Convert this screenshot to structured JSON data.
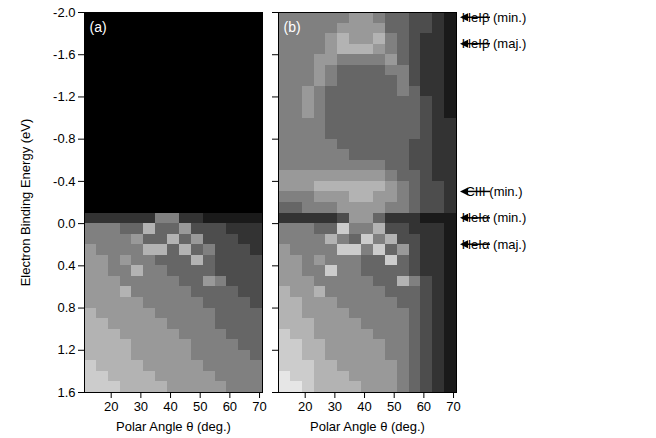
{
  "chart_data": [
    {
      "type": "heatmap",
      "title": "(a)",
      "x_label": "Polar Angle θ (deg.)",
      "y_label": "Electron Binding Energy (eV)",
      "xlim": [
        11,
        71
      ],
      "ylim": [
        -2,
        1.6
      ],
      "xticks": [
        20,
        30,
        40,
        50,
        60,
        70
      ],
      "yticks": [
        {
          "value": -2,
          "label": "-2.0"
        },
        -1.6,
        -1.2,
        -0.8,
        -0.4,
        {
          "value": 0,
          "label": "0.0"
        },
        0.4,
        0.8,
        1.2,
        1.6
      ],
      "color": "gray",
      "zlim": [
        0,
        10
      ],
      "x_edges": [
        11,
        15,
        19,
        23,
        27,
        31,
        35,
        39,
        43,
        47,
        51,
        55,
        59,
        63,
        67,
        71
      ],
      "y_edges": [
        -2,
        -1.9,
        -1.8,
        -1.7,
        -1.6,
        -1.5,
        -1.4,
        -1.3,
        -1.2,
        -1.1,
        -1,
        -0.9,
        -0.8,
        -0.7,
        -0.6,
        -0.5,
        -0.4,
        -0.3,
        -0.2,
        -0.1,
        0,
        0.1,
        0.2,
        0.3,
        0.4,
        0.5,
        0.6,
        0.7,
        0.8,
        0.9,
        1,
        1.1,
        1.2,
        1.3,
        1.4,
        1.5,
        1.6
      ],
      "intensity": [
        [
          0,
          0,
          0,
          0,
          0,
          0,
          0,
          0,
          0,
          0,
          0,
          0,
          0,
          0,
          0
        ],
        [
          0,
          0,
          0,
          0,
          0,
          0,
          0,
          0,
          0,
          0,
          0,
          0,
          0,
          0,
          0
        ],
        [
          0,
          0,
          0,
          0,
          0,
          0,
          0,
          0,
          0,
          0,
          0,
          0,
          0,
          0,
          0
        ],
        [
          0,
          0,
          0,
          0,
          0,
          0,
          0,
          0,
          0,
          0,
          0,
          0,
          0,
          0,
          0
        ],
        [
          0,
          0,
          0,
          0,
          0,
          0,
          0,
          0,
          0,
          0,
          0,
          0,
          0,
          0,
          0
        ],
        [
          0,
          0,
          0,
          0,
          0,
          0,
          0,
          0,
          0,
          0,
          0,
          0,
          0,
          0,
          0
        ],
        [
          0,
          0,
          0,
          0,
          0,
          0,
          0,
          0,
          0,
          0,
          0,
          0,
          0,
          0,
          0
        ],
        [
          0,
          0,
          0,
          0,
          0,
          0,
          0,
          0,
          0,
          0,
          0,
          0,
          0,
          0,
          0
        ],
        [
          0,
          0,
          0,
          0,
          0,
          0,
          0,
          0,
          0,
          0,
          0,
          0,
          0,
          0,
          0
        ],
        [
          0,
          0,
          0,
          0,
          0,
          0,
          0,
          0,
          0,
          0,
          0,
          0,
          0,
          0,
          0
        ],
        [
          0,
          0,
          0,
          0,
          0,
          0,
          0,
          0,
          0,
          0,
          0,
          0,
          0,
          0,
          0
        ],
        [
          0,
          0,
          0,
          0,
          0,
          0,
          0,
          0,
          0,
          0,
          0,
          0,
          0,
          0,
          0
        ],
        [
          0,
          0,
          0,
          0,
          0,
          0,
          0,
          0,
          0,
          0,
          0,
          0,
          0,
          0,
          0
        ],
        [
          0,
          0,
          0,
          0,
          0,
          0,
          0,
          0,
          0,
          0,
          0,
          0,
          0,
          0,
          0
        ],
        [
          0,
          0,
          0,
          0,
          0,
          0,
          0,
          0,
          0,
          0,
          0,
          0,
          0,
          0,
          0
        ],
        [
          0,
          0,
          0,
          0,
          0,
          0,
          0,
          0,
          0,
          0,
          0,
          0,
          0,
          0,
          0
        ],
        [
          0,
          0,
          0,
          0,
          0,
          0,
          0,
          0,
          0,
          0,
          0,
          0,
          0,
          0,
          0
        ],
        [
          0,
          0,
          0,
          0,
          0,
          0,
          0,
          0,
          0,
          0,
          0,
          0,
          0,
          0,
          0
        ],
        [
          0,
          0,
          0,
          0,
          0,
          0,
          0,
          0,
          0,
          0,
          0,
          0,
          0,
          0,
          0
        ],
        [
          2,
          2,
          2,
          2,
          2,
          2,
          5,
          5,
          2,
          2,
          1,
          1,
          1,
          1,
          1
        ],
        [
          5,
          5,
          5,
          4,
          4,
          7,
          4,
          4,
          6,
          3,
          3,
          3,
          2,
          2,
          2
        ],
        [
          5,
          5,
          5,
          5,
          6,
          4,
          4,
          7,
          4,
          6,
          3,
          3,
          3,
          2,
          2
        ],
        [
          6,
          5,
          5,
          5,
          5,
          7,
          7,
          4,
          7,
          4,
          5,
          3,
          3,
          3,
          2
        ],
        [
          6,
          6,
          5,
          6,
          5,
          5,
          4,
          4,
          4,
          7,
          4,
          3,
          3,
          3,
          3
        ],
        [
          6,
          6,
          5,
          5,
          7,
          5,
          5,
          4,
          4,
          4,
          4,
          3,
          3,
          3,
          3
        ],
        [
          6,
          6,
          6,
          5,
          5,
          5,
          5,
          5,
          4,
          4,
          6,
          5,
          3,
          3,
          3
        ],
        [
          6,
          6,
          6,
          7,
          5,
          5,
          5,
          5,
          5,
          4,
          4,
          4,
          4,
          3,
          3
        ],
        [
          6,
          6,
          6,
          6,
          6,
          5,
          5,
          5,
          5,
          5,
          4,
          4,
          4,
          4,
          3
        ],
        [
          7,
          6,
          6,
          6,
          6,
          6,
          5,
          5,
          5,
          5,
          5,
          4,
          4,
          4,
          4
        ],
        [
          7,
          7,
          6,
          6,
          6,
          6,
          6,
          5,
          5,
          5,
          5,
          4,
          4,
          4,
          4
        ],
        [
          7,
          7,
          7,
          6,
          6,
          6,
          6,
          6,
          5,
          5,
          5,
          5,
          4,
          4,
          4
        ],
        [
          7,
          7,
          7,
          7,
          6,
          6,
          6,
          6,
          6,
          5,
          5,
          5,
          5,
          4,
          4
        ],
        [
          7,
          7,
          7,
          7,
          6,
          6,
          6,
          6,
          6,
          5,
          5,
          5,
          5,
          5,
          4
        ],
        [
          8,
          7,
          7,
          7,
          7,
          6,
          6,
          6,
          6,
          6,
          5,
          5,
          5,
          5,
          5
        ],
        [
          8,
          8,
          7,
          7,
          7,
          7,
          6,
          6,
          6,
          6,
          6,
          5,
          5,
          5,
          5
        ],
        [
          8,
          8,
          8,
          7,
          7,
          7,
          7,
          6,
          6,
          6,
          6,
          6,
          5,
          5,
          5
        ]
      ]
    },
    {
      "type": "heatmap",
      "title": "(b)",
      "x_label": "Polar Angle θ (deg.)",
      "tick_labels": "x",
      "xlim": [
        11,
        71
      ],
      "ylim": [
        -2,
        1.6
      ],
      "xticks": [
        20,
        30,
        40,
        50,
        60,
        70
      ],
      "yticks": [
        {
          "value": -2,
          "label": "-2.0"
        },
        -1.6,
        -1.2,
        -0.8,
        -0.4,
        {
          "value": 0,
          "label": "0.0"
        },
        0.4,
        0.8,
        1.2,
        1.6
      ],
      "color": "gray",
      "zlim": [
        0,
        10
      ],
      "x_edges": [
        11,
        15,
        19,
        23,
        27,
        31,
        35,
        39,
        43,
        47,
        51,
        55,
        59,
        63,
        67,
        71
      ],
      "y_edges": [
        -2,
        -1.9,
        -1.8,
        -1.7,
        -1.6,
        -1.5,
        -1.4,
        -1.3,
        -1.2,
        -1.1,
        -1,
        -0.9,
        -0.8,
        -0.7,
        -0.6,
        -0.5,
        -0.4,
        -0.3,
        -0.2,
        -0.1,
        0,
        0.1,
        0.2,
        0.3,
        0.4,
        0.5,
        0.6,
        0.7,
        0.8,
        0.9,
        1,
        1.1,
        1.2,
        1.3,
        1.4,
        1.5,
        1.6
      ],
      "intensity": [
        [
          5,
          5,
          5,
          5,
          5,
          5,
          6,
          6,
          5,
          4,
          4,
          3,
          3,
          2,
          1
        ],
        [
          5,
          5,
          5,
          5,
          5,
          6,
          6,
          6,
          6,
          4,
          4,
          3,
          3,
          2,
          1
        ],
        [
          5,
          5,
          5,
          5,
          6,
          7,
          6,
          6,
          7,
          5,
          4,
          3,
          2,
          2,
          1
        ],
        [
          5,
          5,
          5,
          5,
          6,
          7,
          7,
          7,
          6,
          5,
          4,
          3,
          2,
          2,
          1
        ],
        [
          5,
          5,
          5,
          6,
          6,
          5,
          5,
          5,
          5,
          6,
          4,
          3,
          2,
          2,
          1
        ],
        [
          5,
          5,
          5,
          6,
          5,
          4,
          4,
          4,
          4,
          5,
          5,
          3,
          2,
          2,
          1
        ],
        [
          5,
          5,
          5,
          6,
          5,
          4,
          4,
          4,
          4,
          4,
          5,
          3,
          2,
          2,
          1
        ],
        [
          5,
          5,
          6,
          5,
          4,
          4,
          4,
          4,
          4,
          4,
          5,
          4,
          2,
          2,
          1
        ],
        [
          5,
          5,
          6,
          5,
          4,
          4,
          4,
          4,
          4,
          4,
          4,
          4,
          3,
          2,
          1
        ],
        [
          5,
          5,
          6,
          5,
          4,
          4,
          4,
          4,
          4,
          4,
          4,
          4,
          3,
          2,
          1
        ],
        [
          5,
          5,
          5,
          5,
          4,
          4,
          4,
          4,
          4,
          4,
          4,
          4,
          3,
          2,
          2
        ],
        [
          5,
          5,
          5,
          5,
          4,
          4,
          4,
          4,
          4,
          4,
          4,
          4,
          3,
          2,
          2
        ],
        [
          5,
          5,
          5,
          5,
          5,
          4,
          4,
          4,
          4,
          4,
          4,
          3,
          3,
          2,
          2
        ],
        [
          5,
          5,
          5,
          5,
          5,
          5,
          4,
          4,
          4,
          4,
          4,
          3,
          3,
          2,
          2
        ],
        [
          5,
          5,
          5,
          5,
          5,
          5,
          5,
          5,
          5,
          4,
          4,
          3,
          3,
          2,
          2
        ],
        [
          6,
          6,
          6,
          6,
          6,
          6,
          6,
          6,
          6,
          5,
          4,
          4,
          3,
          2,
          2
        ],
        [
          6,
          6,
          6,
          7,
          7,
          7,
          7,
          7,
          7,
          6,
          5,
          4,
          3,
          3,
          2
        ],
        [
          5,
          5,
          5,
          6,
          6,
          6,
          7,
          7,
          6,
          6,
          5,
          4,
          3,
          3,
          2
        ],
        [
          4,
          4,
          5,
          5,
          5,
          6,
          6,
          6,
          6,
          5,
          5,
          4,
          3,
          3,
          2
        ],
        [
          2,
          2,
          2,
          2,
          2,
          3,
          6,
          6,
          4,
          2,
          2,
          2,
          1,
          1,
          1
        ],
        [
          5,
          5,
          5,
          4,
          4,
          8,
          5,
          5,
          7,
          3,
          3,
          2,
          2,
          2,
          1
        ],
        [
          5,
          5,
          5,
          5,
          7,
          5,
          4,
          8,
          5,
          7,
          3,
          3,
          2,
          2,
          1
        ],
        [
          6,
          5,
          5,
          5,
          5,
          8,
          8,
          5,
          8,
          4,
          6,
          3,
          2,
          2,
          1
        ],
        [
          6,
          6,
          5,
          6,
          5,
          5,
          5,
          4,
          4,
          8,
          4,
          3,
          2,
          2,
          1
        ],
        [
          6,
          6,
          5,
          5,
          8,
          5,
          5,
          4,
          4,
          4,
          4,
          3,
          2,
          2,
          1
        ],
        [
          6,
          6,
          6,
          5,
          5,
          5,
          5,
          5,
          4,
          4,
          7,
          5,
          3,
          2,
          1
        ],
        [
          7,
          6,
          6,
          7,
          5,
          5,
          5,
          5,
          5,
          4,
          4,
          4,
          3,
          2,
          1
        ],
        [
          7,
          7,
          6,
          6,
          6,
          5,
          5,
          5,
          5,
          5,
          4,
          4,
          3,
          2,
          1
        ],
        [
          7,
          7,
          6,
          6,
          6,
          6,
          5,
          5,
          5,
          5,
          5,
          4,
          3,
          2,
          1
        ],
        [
          7,
          7,
          7,
          6,
          6,
          6,
          6,
          5,
          5,
          5,
          5,
          4,
          3,
          2,
          1
        ],
        [
          8,
          7,
          7,
          6,
          6,
          6,
          6,
          6,
          5,
          5,
          5,
          4,
          3,
          2,
          1
        ],
        [
          8,
          8,
          7,
          7,
          6,
          6,
          6,
          6,
          6,
          5,
          5,
          4,
          3,
          2,
          1
        ],
        [
          8,
          8,
          7,
          7,
          6,
          6,
          6,
          6,
          6,
          5,
          5,
          4,
          3,
          2,
          1
        ],
        [
          8,
          8,
          8,
          7,
          7,
          6,
          6,
          6,
          6,
          6,
          5,
          4,
          3,
          2,
          1
        ],
        [
          9,
          8,
          8,
          7,
          7,
          7,
          6,
          6,
          6,
          6,
          5,
          4,
          3,
          2,
          1
        ],
        [
          9,
          9,
          8,
          7,
          7,
          7,
          7,
          6,
          6,
          6,
          5,
          4,
          3,
          2,
          1
        ]
      ],
      "annotations": [
        {
          "text": "HeIβ (min.)",
          "y": -1.95
        },
        {
          "text": "HeIβ (maj.)",
          "y": -1.7
        },
        {
          "text": "CIII (min.)",
          "y": -0.3
        },
        {
          "text": "HeIα (min.)",
          "y": -0.05
        },
        {
          "text": "HeIα (maj.)",
          "y": 0.2
        }
      ]
    }
  ]
}
